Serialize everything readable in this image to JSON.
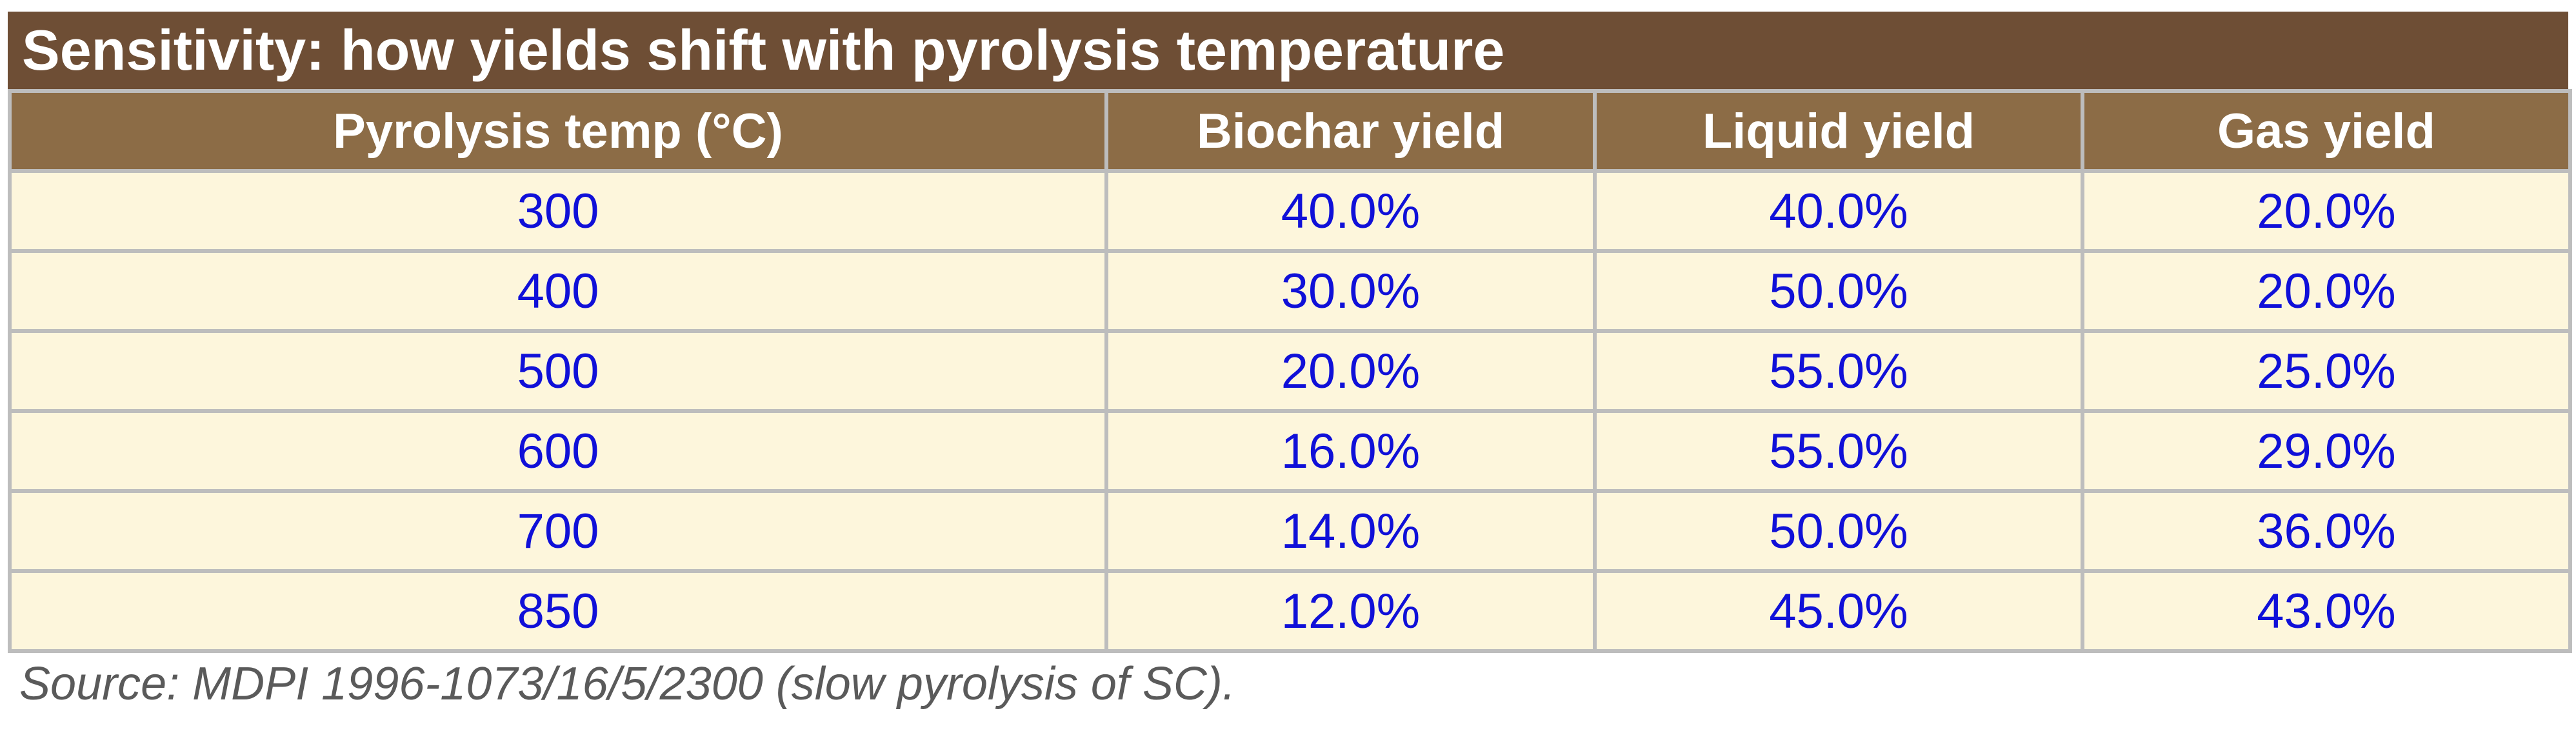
{
  "title": "Sensitivity: how yields shift with pyrolysis temperature",
  "table": {
    "headers": [
      "Pyrolysis temp (°C)",
      "Biochar yield",
      "Liquid yield",
      "Gas yield"
    ],
    "rows": [
      [
        "300",
        "40.0%",
        "40.0%",
        "20.0%"
      ],
      [
        "400",
        "30.0%",
        "50.0%",
        "20.0%"
      ],
      [
        "500",
        "20.0%",
        "55.0%",
        "25.0%"
      ],
      [
        "600",
        "16.0%",
        "55.0%",
        "29.0%"
      ],
      [
        "700",
        "14.0%",
        "50.0%",
        "36.0%"
      ],
      [
        "850",
        "12.0%",
        "45.0%",
        "43.0%"
      ]
    ]
  },
  "source_note": "Source: MDPI 1996-1073/16/5/2300 (slow pyrolysis of SC).",
  "colors": {
    "title_bg": "#6e4e35",
    "header_bg": "#8c6c46",
    "cell_bg": "#fdf6dc",
    "cell_text": "#1010d8",
    "grid": "#bdbdbd"
  }
}
